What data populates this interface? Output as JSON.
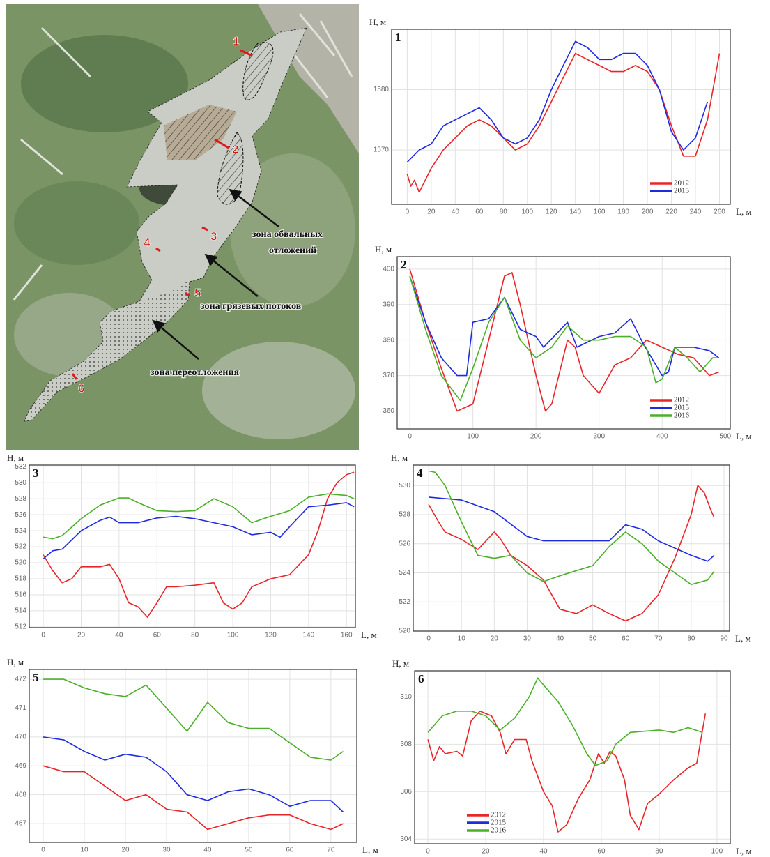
{
  "map": {
    "markers": [
      "1",
      "2",
      "3",
      "4",
      "5",
      "6"
    ],
    "zones": [
      [
        "зона обвальных",
        "отложений"
      ],
      [
        "зона грязевых потоков"
      ],
      [
        "зона переотложения"
      ]
    ]
  },
  "chart_data": [
    {
      "type": "line",
      "panel": "1",
      "ylabel": "H, м",
      "xlabel": "L, м",
      "xlim": [
        -13,
        269
      ],
      "ylim": [
        1561,
        1590
      ],
      "xticks": [
        0,
        20,
        40,
        60,
        80,
        100,
        120,
        140,
        160,
        180,
        200,
        220,
        240,
        260
      ],
      "yticks": [
        1570,
        1580
      ],
      "grid": true,
      "legend": "lower right",
      "series": [
        {
          "name": "2012",
          "color": "#e8262a",
          "x": [
            0,
            3,
            6,
            10,
            20,
            30,
            40,
            50,
            60,
            70,
            80,
            90,
            100,
            110,
            120,
            130,
            140,
            150,
            160,
            170,
            180,
            190,
            200,
            210,
            220,
            230,
            240,
            250,
            260
          ],
          "values": [
            1566,
            1564,
            1565,
            1563,
            1567,
            1570,
            1572,
            1574,
            1575,
            1574,
            1572,
            1570,
            1571,
            1574,
            1578,
            1582,
            1586,
            1585,
            1584,
            1583,
            1583,
            1584,
            1583,
            1580,
            1574,
            1569,
            1569,
            1575,
            1586
          ]
        },
        {
          "name": "2015",
          "color": "#1f2be0",
          "x": [
            0,
            10,
            20,
            30,
            40,
            50,
            60,
            70,
            80,
            90,
            100,
            110,
            120,
            130,
            140,
            150,
            160,
            170,
            180,
            190,
            200,
            210,
            220,
            230,
            240,
            250
          ],
          "values": [
            1568,
            1570,
            1571,
            1574,
            1575,
            1576,
            1577,
            1575,
            1572,
            1571,
            1572,
            1575,
            1580,
            1584,
            1588,
            1587,
            1585,
            1585,
            1586,
            1586,
            1584,
            1580,
            1573,
            1570,
            1572,
            1578
          ]
        }
      ]
    },
    {
      "type": "line",
      "panel": "2",
      "ylabel": "H, м",
      "xlabel": "L, м",
      "xlim": [
        -20,
        508
      ],
      "ylim": [
        355,
        403.5
      ],
      "xticks": [
        0,
        100,
        200,
        300,
        400,
        500
      ],
      "yticks": [
        360,
        370,
        380,
        390,
        400
      ],
      "grid": true,
      "legend": "lower right",
      "series": [
        {
          "name": "2012",
          "color": "#e8262a",
          "x": [
            0,
            25,
            50,
            75,
            100,
            125,
            150,
            162,
            175,
            200,
            215,
            225,
            250,
            262,
            275,
            300,
            325,
            350,
            375,
            400,
            425,
            450,
            475,
            490
          ],
          "values": [
            400,
            385,
            372,
            360,
            362,
            380,
            398,
            399,
            390,
            370,
            360,
            362,
            380,
            378,
            370,
            365,
            373,
            375,
            380,
            378,
            376,
            375,
            370,
            371
          ]
        },
        {
          "name": "2015",
          "color": "#1f2be0",
          "x": [
            0,
            25,
            50,
            75,
            90,
            100,
            125,
            150,
            175,
            200,
            212,
            250,
            265,
            300,
            325,
            350,
            370,
            400,
            410,
            420,
            450,
            475,
            490
          ],
          "values": [
            398,
            385,
            375,
            370,
            370,
            385,
            386,
            392,
            383,
            381,
            378,
            385,
            378,
            381,
            382,
            386,
            379,
            370,
            371,
            378,
            378,
            377,
            375
          ]
        },
        {
          "name": "2016",
          "color": "#4caf2a",
          "x": [
            0,
            25,
            50,
            80,
            100,
            125,
            150,
            175,
            200,
            225,
            250,
            275,
            300,
            325,
            350,
            375,
            390,
            400,
            420,
            440,
            460,
            480,
            490
          ],
          "values": [
            398,
            383,
            370,
            363,
            372,
            385,
            392,
            380,
            375,
            378,
            384,
            380,
            380,
            381,
            381,
            378,
            368,
            369,
            378,
            375,
            371,
            375,
            375
          ]
        }
      ]
    },
    {
      "type": "line",
      "panel": "3",
      "ylabel": "H, м",
      "xlabel": "L, м",
      "xlim": [
        -7.4,
        164.7
      ],
      "ylim": [
        511.9,
        532.2
      ],
      "xticks": [
        0,
        20,
        40,
        60,
        80,
        100,
        120,
        140,
        160
      ],
      "yticks": [
        512,
        514,
        516,
        518,
        520,
        522,
        524,
        526,
        528,
        530,
        532
      ],
      "grid": true,
      "series": [
        {
          "name": "2012",
          "color": "#e8262a",
          "x": [
            0,
            5,
            10,
            15,
            20,
            30,
            35,
            40,
            45,
            50,
            55,
            60,
            65,
            70,
            80,
            90,
            95,
            100,
            105,
            110,
            120,
            130,
            140,
            145,
            150,
            155,
            160,
            164
          ],
          "values": [
            521,
            519,
            517.5,
            518,
            519.5,
            519.5,
            519.8,
            518,
            515,
            514.5,
            513.2,
            515,
            517,
            517,
            517.2,
            517.5,
            515,
            514.2,
            515,
            517,
            518,
            518.5,
            521,
            524,
            528,
            530,
            531,
            531.3
          ]
        },
        {
          "name": "2015",
          "color": "#1f2be0",
          "x": [
            0,
            5,
            10,
            20,
            30,
            35,
            40,
            50,
            60,
            70,
            80,
            90,
            100,
            110,
            120,
            125,
            130,
            140,
            150,
            160,
            164
          ],
          "values": [
            520.5,
            521.5,
            521.7,
            524,
            525.3,
            525.7,
            525,
            525,
            525.6,
            525.8,
            525.5,
            525,
            524.5,
            523.5,
            523.8,
            523.2,
            524.5,
            527,
            527.2,
            527.5,
            527
          ]
        },
        {
          "name": "2016",
          "color": "#4caf2a",
          "x": [
            0,
            5,
            10,
            20,
            30,
            40,
            45,
            50,
            60,
            70,
            80,
            90,
            100,
            110,
            120,
            130,
            140,
            150,
            160,
            164
          ],
          "values": [
            523.2,
            523,
            523.4,
            525.5,
            527.2,
            528.1,
            528.1,
            527.5,
            526.5,
            526.4,
            526.5,
            528,
            527,
            525,
            525.8,
            526.5,
            528.2,
            528.6,
            528.4,
            528
          ]
        }
      ]
    },
    {
      "type": "line",
      "panel": "4",
      "ylabel": "H, м",
      "xlabel": "L, м",
      "xlim": [
        -4.7,
        91.7
      ],
      "ylim": [
        520,
        531.4
      ],
      "xticks": [
        0,
        10,
        20,
        30,
        40,
        50,
        60,
        70,
        80,
        90
      ],
      "yticks": [
        520,
        522,
        524,
        526,
        528,
        530
      ],
      "grid": true,
      "series": [
        {
          "name": "2012",
          "color": "#e8262a",
          "x": [
            0,
            3,
            5,
            10,
            15,
            20,
            22,
            25,
            30,
            35,
            40,
            45,
            50,
            55,
            60,
            65,
            70,
            75,
            80,
            82,
            84,
            86,
            87
          ],
          "values": [
            528.7,
            527.5,
            526.8,
            526.3,
            525.6,
            526.8,
            526.3,
            525.2,
            524.5,
            523.5,
            521.5,
            521.2,
            521.8,
            521.2,
            520.7,
            521.2,
            522.5,
            525,
            528,
            530,
            529.5,
            528.3,
            527.8
          ]
        },
        {
          "name": "2015",
          "color": "#1f2be0",
          "x": [
            0,
            10,
            20,
            30,
            35,
            45,
            55,
            60,
            65,
            70,
            80,
            85,
            87
          ],
          "values": [
            529.2,
            529,
            528.2,
            526.5,
            526.2,
            526.2,
            526.2,
            527.3,
            527,
            526.2,
            525.2,
            524.8,
            525.2
          ]
        },
        {
          "name": "2016",
          "color": "#4caf2a",
          "x": [
            0,
            2,
            5,
            10,
            15,
            20,
            25,
            30,
            35,
            40,
            50,
            55,
            60,
            65,
            70,
            75,
            80,
            85,
            87
          ],
          "values": [
            531,
            530.9,
            530,
            527.5,
            525.2,
            525,
            525.2,
            524,
            523.4,
            523.8,
            524.5,
            525.8,
            526.8,
            526,
            524.8,
            524,
            523.2,
            523.5,
            524.1
          ]
        }
      ]
    },
    {
      "type": "line",
      "panel": "5",
      "ylabel": "H, м",
      "xlabel": "L, м",
      "xlim": [
        -3.4,
        76.3
      ],
      "ylim": [
        466.35,
        472.34
      ],
      "xticks": [
        0,
        10,
        20,
        30,
        40,
        50,
        60,
        70
      ],
      "yticks": [
        467,
        468,
        469,
        470,
        471,
        472
      ],
      "grid": true,
      "series": [
        {
          "name": "2012",
          "color": "#e8262a",
          "x": [
            0,
            5,
            10,
            15,
            20,
            25,
            30,
            35,
            40,
            45,
            50,
            55,
            60,
            65,
            70,
            73
          ],
          "values": [
            469,
            468.8,
            468.8,
            468.3,
            467.8,
            468,
            467.5,
            467.4,
            466.8,
            467,
            467.2,
            467.3,
            467.3,
            467,
            466.8,
            467
          ]
        },
        {
          "name": "2015",
          "color": "#1f2be0",
          "x": [
            0,
            5,
            10,
            15,
            20,
            25,
            30,
            35,
            40,
            45,
            50,
            55,
            60,
            65,
            70,
            73
          ],
          "values": [
            470,
            469.9,
            469.5,
            469.2,
            469.4,
            469.3,
            468.8,
            468,
            467.8,
            468.1,
            468.2,
            468,
            467.6,
            467.8,
            467.8,
            467.4
          ]
        },
        {
          "name": "2016",
          "color": "#4caf2a",
          "x": [
            0,
            5,
            10,
            15,
            20,
            25,
            30,
            35,
            40,
            45,
            50,
            55,
            60,
            65,
            70,
            73
          ],
          "values": [
            472,
            472,
            471.7,
            471.5,
            471.4,
            471.8,
            471,
            470.2,
            471.2,
            470.5,
            470.3,
            470.3,
            469.8,
            469.3,
            469.2,
            469.5
          ]
        }
      ]
    },
    {
      "type": "line",
      "panel": "6",
      "ylabel": "H, м",
      "xlabel": "L, м",
      "xlim": [
        -4.6,
        104.6
      ],
      "ylim": [
        303.8,
        311.1
      ],
      "xticks": [
        0,
        20,
        40,
        60,
        80,
        100
      ],
      "yticks": [
        304,
        306,
        308,
        310
      ],
      "grid": true,
      "legend": "lower left",
      "series": [
        {
          "name": "2012",
          "color": "#e8262a",
          "x": [
            0,
            2,
            4,
            6,
            10,
            12,
            15,
            18,
            20,
            22,
            25,
            27,
            30,
            34,
            36,
            40,
            43,
            45,
            48,
            52,
            56,
            59,
            61,
            63,
            65,
            68,
            70,
            73,
            76,
            80,
            85,
            90,
            93,
            96
          ],
          "values": [
            308.2,
            307.3,
            307.9,
            307.6,
            307.7,
            307.5,
            309,
            309.4,
            309.3,
            309.2,
            308.5,
            307.6,
            308.2,
            308.2,
            307.3,
            306,
            305.4,
            304.3,
            304.6,
            305.7,
            306.5,
            307.6,
            307.2,
            307.7,
            307.5,
            306.5,
            305,
            304.4,
            305.5,
            305.9,
            306.5,
            307,
            307.2,
            309.3
          ]
        },
        {
          "name": "2015",
          "color": "#1f2be0",
          "x": [],
          "values": []
        },
        {
          "name": "2016",
          "color": "#4caf2a",
          "x": [
            0,
            5,
            10,
            15,
            20,
            25,
            30,
            35,
            38,
            40,
            45,
            50,
            55,
            58,
            62,
            65,
            70,
            80,
            85,
            90,
            95
          ],
          "values": [
            308.5,
            309.2,
            309.4,
            309.4,
            309.2,
            308.6,
            309.1,
            310,
            310.8,
            310.5,
            309.8,
            308.8,
            307.6,
            307.1,
            307.3,
            308,
            308.5,
            308.6,
            308.5,
            308.7,
            308.5
          ]
        }
      ]
    }
  ]
}
